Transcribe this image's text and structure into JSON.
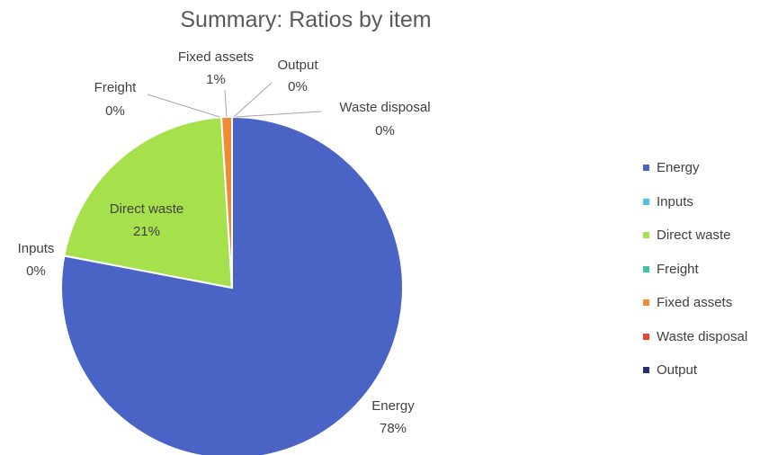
{
  "chart_data": {
    "type": "pie",
    "title": "Summary: Ratios by item",
    "slices": [
      {
        "label": "Energy",
        "value": 78,
        "display": "78%",
        "color": "#4a64c5"
      },
      {
        "label": "Inputs",
        "value": 0,
        "display": "0%",
        "color": "#4fc3de"
      },
      {
        "label": "Direct waste",
        "value": 21,
        "display": "21%",
        "color": "#a6e04b"
      },
      {
        "label": "Freight",
        "value": 0,
        "display": "0%",
        "color": "#3cc4a4"
      },
      {
        "label": "Fixed assets",
        "value": 1,
        "display": "1%",
        "color": "#f28a33"
      },
      {
        "label": "Waste disposal",
        "value": 0,
        "display": "0%",
        "color": "#e8452c"
      },
      {
        "label": "Output",
        "value": 0,
        "display": "0%",
        "color": "#1f2f7a"
      }
    ],
    "legend_position": "right"
  }
}
